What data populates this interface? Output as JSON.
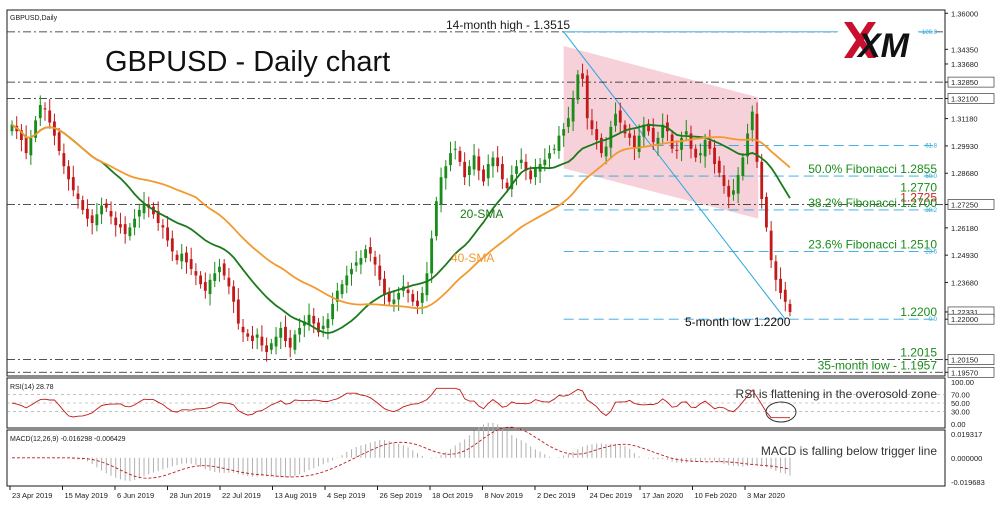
{
  "chart_data": {
    "type": "candlestick",
    "symbol_label": "GBPUSD,Daily",
    "title": "GBPUSD - Daily chart",
    "logo_text": "XM",
    "price_axis": {
      "ticks": [
        "1.36000",
        "1.34350",
        "1.33680",
        "1.32850",
        "1.32100",
        "1.31180",
        "1.29930",
        "1.28680",
        "1.27250",
        "1.26180",
        "1.24930",
        "1.23680",
        "1.22331",
        "1.22000",
        "1.20150",
        "1.19570"
      ],
      "ylim": [
        1.194,
        1.3615
      ]
    },
    "date_axis": [
      "23 Apr 2019",
      "15 May 2019",
      "6 Jun 2019",
      "28 Jun 2019",
      "22 Jul 2019",
      "13 Aug 2019",
      "4 Sep 2019",
      "26 Sep 2019",
      "18 Oct 2019",
      "8 Nov 2019",
      "2 Dec 2019",
      "24 Dec 2019",
      "17 Jan 2020",
      "10 Feb 2020",
      "3 Mar 2020"
    ],
    "candles_close_path": [
      1.309,
      1.306,
      1.302,
      1.296,
      1.303,
      1.311,
      1.318,
      1.316,
      1.31,
      1.304,
      1.297,
      1.29,
      1.284,
      1.279,
      1.275,
      1.27,
      1.266,
      1.264,
      1.268,
      1.272,
      1.271,
      1.267,
      1.263,
      1.262,
      1.259,
      1.262,
      1.266,
      1.27,
      1.273,
      1.271,
      1.268,
      1.264,
      1.262,
      1.256,
      1.251,
      1.247,
      1.25,
      1.246,
      1.243,
      1.24,
      1.236,
      1.233,
      1.238,
      1.241,
      1.244,
      1.24,
      1.235,
      1.228,
      1.218,
      1.214,
      1.212,
      1.21,
      1.213,
      1.208,
      1.205,
      1.209,
      1.212,
      1.216,
      1.21,
      1.207,
      1.213,
      1.216,
      1.219,
      1.222,
      1.218,
      1.214,
      1.217,
      1.22,
      1.227,
      1.233,
      1.236,
      1.24,
      1.243,
      1.246,
      1.248,
      1.252,
      1.25,
      1.245,
      1.238,
      1.231,
      1.228,
      1.229,
      1.232,
      1.235,
      1.232,
      1.228,
      1.226,
      1.232,
      1.241,
      1.257,
      1.274,
      1.285,
      1.29,
      1.296,
      1.298,
      1.292,
      1.285,
      1.29,
      1.295,
      1.288,
      1.283,
      1.291,
      1.294,
      1.29,
      1.284,
      1.28,
      1.286,
      1.29,
      1.293,
      1.288,
      1.284,
      1.289,
      1.291,
      1.293,
      1.296,
      1.298,
      1.304,
      1.307,
      1.312,
      1.321,
      1.332,
      1.33,
      1.312,
      1.307,
      1.302,
      1.296,
      1.299,
      1.308,
      1.314,
      1.31,
      1.305,
      1.303,
      1.298,
      1.304,
      1.309,
      1.306,
      1.301,
      1.303,
      1.309,
      1.306,
      1.298,
      1.297,
      1.303,
      1.306,
      1.298,
      1.294,
      1.296,
      1.302,
      1.298,
      1.291,
      1.287,
      1.281,
      1.276,
      1.279,
      1.286,
      1.294,
      1.305,
      1.315,
      1.292,
      1.275,
      1.262,
      1.247,
      1.238,
      1.232,
      1.228,
      1.2233
    ],
    "sma20_label": "20-SMA",
    "sma40_label": "40-SMA",
    "levels": [
      {
        "text": "14-month high - 1.3515",
        "value": 1.3515,
        "color": "#1a1a1a",
        "style": "dashdot"
      },
      {
        "text": "",
        "value": 1.3285,
        "color": "#1a1a1a",
        "style": "dashdot"
      },
      {
        "text": "",
        "value": 1.321,
        "color": "#1a1a1a",
        "style": "dashdot"
      },
      {
        "text": "50.0% Fibonacci 1.2855",
        "value": 1.2855,
        "color": "#1a8c1a",
        "style": "dash"
      },
      {
        "text": "1.2770",
        "value": 1.277,
        "color": "#1a8c1a",
        "style": "none"
      },
      {
        "text": "1.2725",
        "value": 1.2725,
        "color": "#d02020",
        "style": "dashdot"
      },
      {
        "text": "38.2% Fibonacci 1.2700",
        "value": 1.27,
        "color": "#1a8c1a",
        "style": "dash"
      },
      {
        "text": "23.6% Fibonacci 1.2510",
        "value": 1.251,
        "color": "#1a8c1a",
        "style": "dash"
      },
      {
        "text": "1.2200",
        "value": 1.22,
        "color": "#1a8c1a",
        "style": "dash"
      },
      {
        "text": "1.2015",
        "value": 1.2015,
        "color": "#1a8c1a",
        "style": "dashdot"
      },
      {
        "text": "35-month low - 1.1957",
        "value": 1.1957,
        "color": "#1a8c1a",
        "style": "dashdot"
      }
    ],
    "fib_tags": [
      "100.0",
      "61.8",
      "50.0",
      "38.2",
      "23.6",
      "0.0"
    ],
    "annotation_low": "5-month low 1.2200",
    "rsi": {
      "label": "RSI(14) 28.78",
      "ticks": [
        "100.00",
        "70.00",
        "50.00",
        "30.00",
        "0.00"
      ],
      "note": "RSI is flattening in the overosold zone"
    },
    "macd": {
      "label": "MACD(12,26,9) -0.016298 -0.006429",
      "ticks": [
        "0.019317",
        "0.000000",
        "-0.019683"
      ],
      "note": "MACD is falling below trigger line"
    },
    "colors": {
      "bull": "#1a8c1a",
      "bear": "#c21a1a",
      "sma20": "#1a7a1a",
      "sma40": "#f29a2e",
      "fib": "#29a8e0",
      "channel": "#f4c2cc"
    }
  }
}
